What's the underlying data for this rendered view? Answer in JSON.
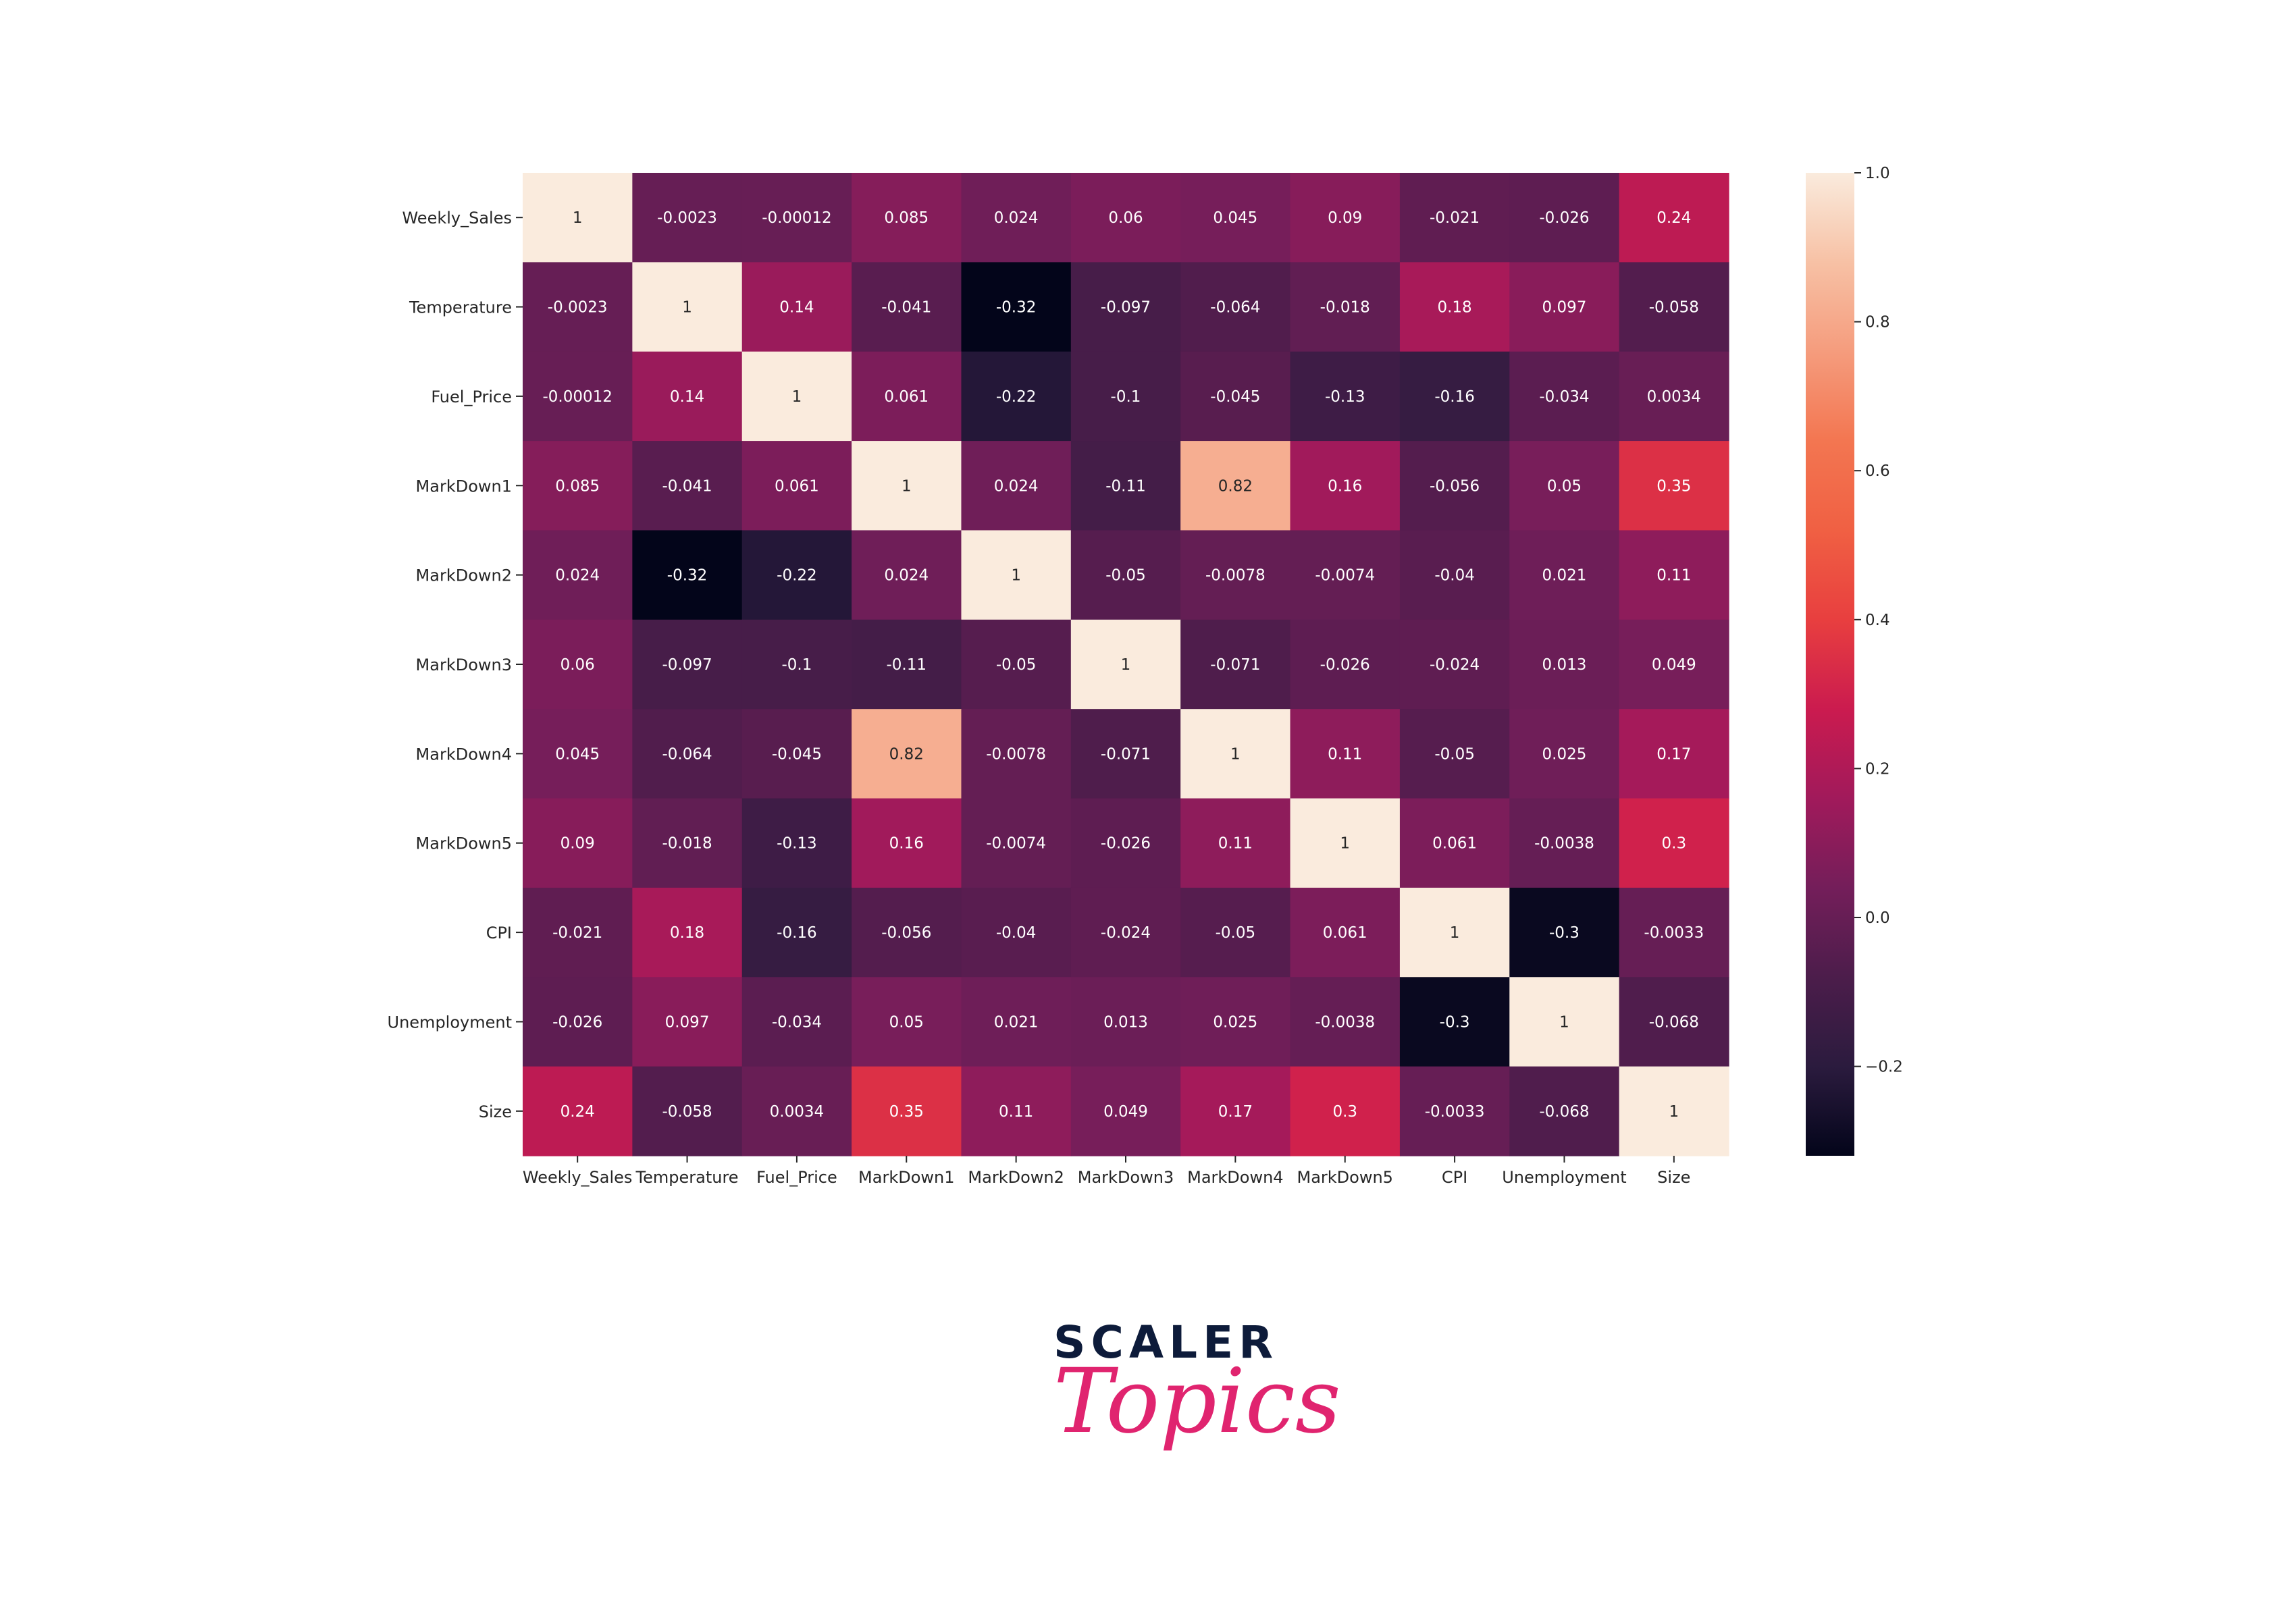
{
  "chart_data": {
    "type": "heatmap",
    "row_labels": [
      "Weekly_Sales",
      "Temperature",
      "Fuel_Price",
      "MarkDown1",
      "MarkDown2",
      "MarkDown3",
      "MarkDown4",
      "MarkDown5",
      "CPI",
      "Unemployment",
      "Size"
    ],
    "col_labels": [
      "Weekly_Sales",
      "Temperature",
      "Fuel_Price",
      "MarkDown1",
      "MarkDown2",
      "MarkDown3",
      "MarkDown4",
      "MarkDown5",
      "CPI",
      "Unemployment",
      "Size"
    ],
    "annotations": [
      [
        "1",
        "-0.0023",
        "-0.00012",
        "0.085",
        "0.024",
        "0.06",
        "0.045",
        "0.09",
        "-0.021",
        "-0.026",
        "0.24"
      ],
      [
        "-0.0023",
        "1",
        "0.14",
        "-0.041",
        "-0.32",
        "-0.097",
        "-0.064",
        "-0.018",
        "0.18",
        "0.097",
        "-0.058"
      ],
      [
        "-0.00012",
        "0.14",
        "1",
        "0.061",
        "-0.22",
        "-0.1",
        "-0.045",
        "-0.13",
        "-0.16",
        "-0.034",
        "0.0034"
      ],
      [
        "0.085",
        "-0.041",
        "0.061",
        "1",
        "0.024",
        "-0.11",
        "0.82",
        "0.16",
        "-0.056",
        "0.05",
        "0.35"
      ],
      [
        "0.024",
        "-0.32",
        "-0.22",
        "0.024",
        "1",
        "-0.05",
        "-0.0078",
        "-0.0074",
        "-0.04",
        "0.021",
        "0.11"
      ],
      [
        "0.06",
        "-0.097",
        "-0.1",
        "-0.11",
        "-0.05",
        "1",
        "-0.071",
        "-0.026",
        "-0.024",
        "0.013",
        "0.049"
      ],
      [
        "0.045",
        "-0.064",
        "-0.045",
        "0.82",
        "-0.0078",
        "-0.071",
        "1",
        "0.11",
        "-0.05",
        "0.025",
        "0.17"
      ],
      [
        "0.09",
        "-0.018",
        "-0.13",
        "0.16",
        "-0.0074",
        "-0.026",
        "0.11",
        "1",
        "0.061",
        "-0.0038",
        "0.3"
      ],
      [
        "-0.021",
        "0.18",
        "-0.16",
        "-0.056",
        "-0.04",
        "-0.024",
        "-0.05",
        "0.061",
        "1",
        "-0.3",
        "-0.0033"
      ],
      [
        "-0.026",
        "0.097",
        "-0.034",
        "0.05",
        "0.021",
        "0.013",
        "0.025",
        "-0.0038",
        "-0.3",
        "1",
        "-0.068"
      ],
      [
        "0.24",
        "-0.058",
        "0.0034",
        "0.35",
        "0.11",
        "0.049",
        "0.17",
        "0.3",
        "-0.0033",
        "-0.068",
        "1"
      ]
    ],
    "colorbar": {
      "min": -0.32,
      "max": 1.0,
      "ticks": [
        1.0,
        0.8,
        0.6,
        0.4,
        0.2,
        0.0,
        -0.2
      ],
      "tick_labels": [
        "1.0",
        "0.8",
        "0.6",
        "0.4",
        "0.2",
        "0.0",
        "−0.2"
      ]
    },
    "colormap": [
      "#03051a",
      "#2b1b3e",
      "#4c1d4b",
      "#741e5a",
      "#a11a5b",
      "#cb1b4f",
      "#e83f3f",
      "#f06043",
      "#f37651",
      "#f59c7d",
      "#f7c1a5",
      "#faebdd"
    ]
  },
  "logo": {
    "word": "SCALER",
    "script": "Topics"
  }
}
